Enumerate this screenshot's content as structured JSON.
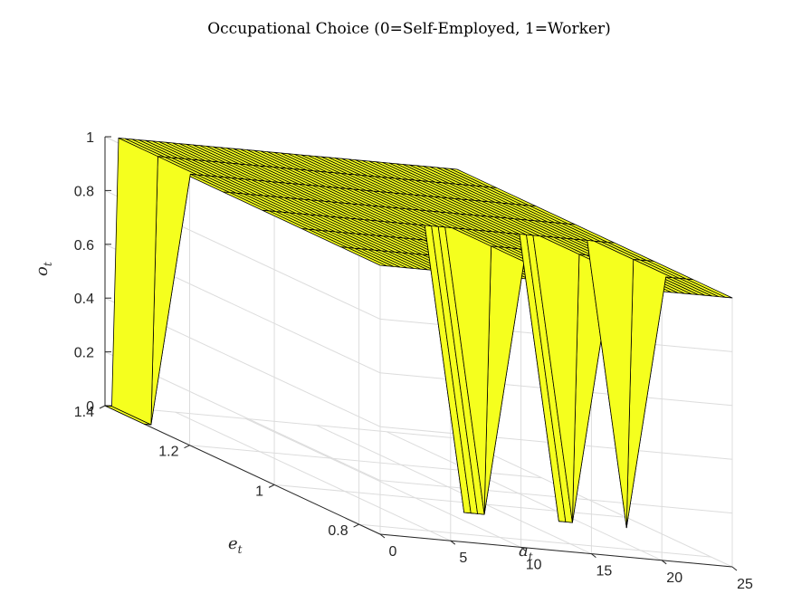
{
  "chart_data": {
    "type": "surface",
    "title": "Occupational Choice (0=Self-Employed, 1=Worker)",
    "xlabel": "a",
    "xlabel_sub": "t",
    "ylabel": "e",
    "ylabel_sub": "t",
    "zlabel": "o",
    "zlabel_sub": "t",
    "xlim": [
      0,
      25
    ],
    "ylim": [
      0.75,
      1.4
    ],
    "zlim": [
      0,
      1
    ],
    "xticks": [
      0,
      5,
      10,
      15,
      20,
      25
    ],
    "yticks": [
      0.8,
      1,
      1.2,
      1.4
    ],
    "zticks": [
      0,
      0.2,
      0.4,
      0.6,
      0.8,
      1
    ],
    "ytick_labels": [
      "0.8",
      "1",
      "1.2",
      "1.4"
    ],
    "zero_regions": [
      {
        "a_from": 0.0,
        "a_to": 0.6,
        "e_high": 1.4,
        "e_low": 1.25
      },
      {
        "a_from": 11.5,
        "a_to": 13.0,
        "e_high": 0.98,
        "e_low": 0.85
      },
      {
        "a_from": 18.0,
        "a_to": 19.5,
        "e_high": 0.98,
        "e_low": 0.87
      },
      {
        "a_from": 22.6,
        "a_to": 23.4,
        "e_high": 0.96,
        "e_low": 0.88
      }
    ],
    "face_color": "#f5ff1e",
    "edge_color": "#000000",
    "grid": true
  }
}
